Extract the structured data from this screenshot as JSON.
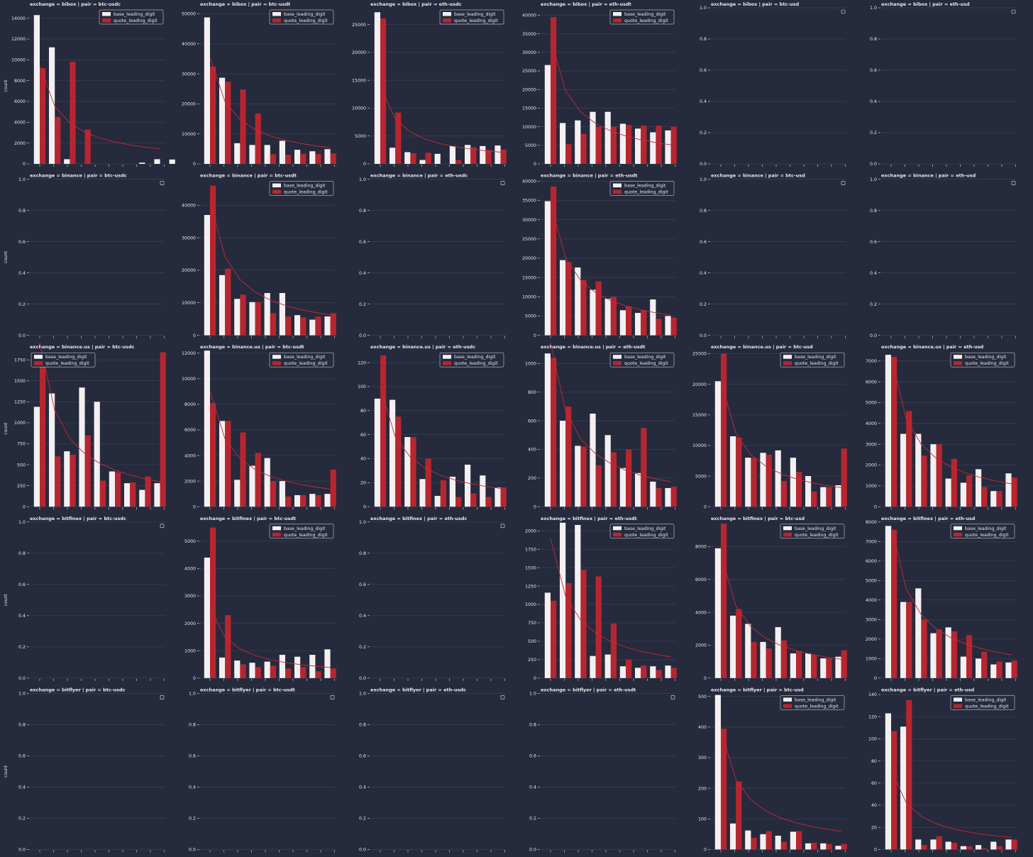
{
  "legend_labels": [
    "base_leading_digit",
    "quote_leading_digit"
  ],
  "y_label": "count",
  "colors": {
    "background": "#262a3d",
    "base": "#f4f0f2",
    "quote": "#b7262f",
    "benford_line": "#c62a34",
    "grid": "#3c4156",
    "text": "#e8e8ee"
  },
  "chart_data": [
    {
      "type": "bar",
      "title": "exchange = bibox | pair = btc-usdc",
      "ylim": [
        0,
        15000
      ],
      "yticks": [
        0,
        2000,
        4000,
        6000,
        8000,
        10000,
        12000,
        14000
      ],
      "legend": true,
      "ylabel": "count",
      "base": [
        14300,
        11200,
        450,
        0,
        0,
        0,
        0,
        120,
        450,
        420
      ],
      "quote": [
        9200,
        4500,
        9800,
        3300,
        0,
        0,
        0,
        0,
        0,
        0
      ],
      "benford_total": 31400
    },
    {
      "type": "bar",
      "title": "exchange = bibox | pair = btc-usdt",
      "ylim": [
        0,
        52000
      ],
      "yticks": [
        0,
        10000,
        20000,
        30000,
        40000,
        50000
      ],
      "legend": true,
      "ylabel": "",
      "base": [
        48800,
        28700,
        6900,
        6300,
        6300,
        7700,
        4700,
        4200,
        4900,
        0
      ],
      "quote": [
        32400,
        27400,
        24800,
        16800,
        3200,
        3000,
        3400,
        3300,
        3500,
        0
      ],
      "benford_total": 117600
    },
    {
      "type": "bar",
      "title": "exchange = bibox | pair = eth-usdc",
      "ylim": [
        0,
        28000
      ],
      "yticks": [
        0,
        5000,
        10000,
        15000,
        20000,
        25000
      ],
      "legend": true,
      "ylabel": "",
      "base": [
        27200,
        2900,
        2100,
        700,
        1800,
        3200,
        3400,
        3200,
        3300,
        0
      ],
      "quote": [
        26100,
        9200,
        1900,
        2000,
        0,
        700,
        3000,
        2500,
        2600,
        0
      ],
      "benford_total": 45800
    },
    {
      "type": "bar",
      "title": "exchange = bibox | pair = eth-usdt",
      "ylim": [
        0,
        42000
      ],
      "yticks": [
        0,
        5000,
        10000,
        15000,
        20000,
        25000,
        30000,
        35000,
        40000
      ],
      "legend": true,
      "ylabel": "",
      "base": [
        26600,
        11000,
        11700,
        14000,
        14000,
        10800,
        9500,
        8500,
        9000,
        0
      ],
      "quote": [
        39500,
        5300,
        8100,
        10000,
        10000,
        10500,
        10300,
        10300,
        10000,
        0
      ],
      "benford_total": 112000
    },
    {
      "type": "bar",
      "title": "exchange = bibox | pair = btc-usd",
      "ylim": [
        0,
        1
      ],
      "yticks": [
        0.0,
        0.2,
        0.4,
        0.6,
        0.8,
        1.0
      ],
      "legend": false,
      "ylabel": "",
      "base": [],
      "quote": [],
      "benford_total": 0
    },
    {
      "type": "bar",
      "title": "exchange = bibox | pair = eth-usd",
      "ylim": [
        0,
        1
      ],
      "yticks": [
        0.0,
        0.2,
        0.4,
        0.6,
        0.8,
        1.0
      ],
      "legend": false,
      "ylabel": "",
      "base": [],
      "quote": [],
      "benford_total": 0
    },
    {
      "type": "bar",
      "title": "exchange = binance | pair = btc-usdc",
      "ylim": [
        0,
        1
      ],
      "yticks": [
        0.0,
        0.2,
        0.4,
        0.6,
        0.8,
        1.0
      ],
      "legend": false,
      "ylabel": "count",
      "base": [],
      "quote": [],
      "benford_total": 0
    },
    {
      "type": "bar",
      "title": "exchange = binance | pair = btc-usdt",
      "ylim": [
        0,
        48000
      ],
      "yticks": [
        0,
        10000,
        20000,
        30000,
        40000
      ],
      "legend": true,
      "ylabel": "",
      "base": [
        37000,
        18500,
        11200,
        10200,
        13000,
        13000,
        6200,
        4800,
        5800,
        0
      ],
      "quote": [
        46000,
        20500,
        12500,
        10200,
        6800,
        5800,
        5500,
        5800,
        6800,
        0
      ],
      "benford_total": 137000
    },
    {
      "type": "bar",
      "title": "exchange = binance | pair = eth-usdc",
      "ylim": [
        0,
        1
      ],
      "yticks": [
        0.0,
        0.2,
        0.4,
        0.6,
        0.8,
        1.0
      ],
      "legend": false,
      "ylabel": "",
      "base": [],
      "quote": [],
      "benford_total": 0
    },
    {
      "type": "bar",
      "title": "exchange = binance | pair = eth-usdt",
      "ylim": [
        0,
        40500
      ],
      "yticks": [
        0,
        5000,
        10000,
        15000,
        20000,
        25000,
        30000,
        35000,
        40000
      ],
      "legend": true,
      "ylabel": "",
      "base": [
        34800,
        19500,
        17600,
        11800,
        9500,
        6500,
        5800,
        9300,
        5000,
        0
      ],
      "quote": [
        38600,
        19000,
        14400,
        14000,
        10000,
        7500,
        6500,
        4300,
        4600,
        0
      ],
      "benford_total": 114000
    },
    {
      "type": "bar",
      "title": "exchange = binance | pair = btc-usd",
      "ylim": [
        0,
        1
      ],
      "yticks": [
        0.0,
        0.2,
        0.4,
        0.6,
        0.8,
        1.0
      ],
      "legend": false,
      "ylabel": "",
      "base": [],
      "quote": [],
      "benford_total": 0
    },
    {
      "type": "bar",
      "title": "exchange = binance | pair = eth-usd",
      "ylim": [
        0,
        1
      ],
      "yticks": [
        0.0,
        0.2,
        0.4,
        0.6,
        0.8,
        1.0
      ],
      "legend": false,
      "ylabel": "",
      "base": [],
      "quote": [],
      "benford_total": 0
    },
    {
      "type": "bar",
      "title": "exchange = binance.us | pair = btc-usdc",
      "ylim": [
        0,
        1860
      ],
      "yticks": [
        0,
        250,
        500,
        750,
        1000,
        1250,
        1500,
        1750
      ],
      "legend": true,
      "legend_pos": "top-left",
      "ylabel": "count",
      "base": [
        1190,
        1350,
        660,
        1420,
        1250,
        420,
        280,
        200,
        280,
        0
      ],
      "quote": [
        1720,
        600,
        620,
        850,
        310,
        410,
        290,
        360,
        1840,
        0
      ],
      "benford_total": 6500
    },
    {
      "type": "bar",
      "title": "exchange = binance.us | pair = btc-usdt",
      "ylim": [
        0,
        12200
      ],
      "yticks": [
        0,
        2000,
        4000,
        6000,
        8000,
        10000,
        12000
      ],
      "legend": true,
      "ylabel": "",
      "base": [
        12200,
        6700,
        2100,
        3200,
        3800,
        2000,
        900,
        1000,
        1000,
        0
      ],
      "quote": [
        8100,
        6700,
        5800,
        4200,
        2000,
        800,
        900,
        900,
        2900,
        0
      ],
      "benford_total": 30000
    },
    {
      "type": "bar",
      "title": "exchange = binance.us | pair = eth-usdc",
      "ylim": [
        0,
        130
      ],
      "yticks": [
        0,
        20,
        40,
        60,
        80,
        100,
        120
      ],
      "legend": true,
      "ylabel": "",
      "base": [
        90,
        89,
        58,
        23,
        9,
        25,
        35,
        26,
        16,
        0
      ],
      "quote": [
        126,
        75,
        58,
        40,
        22,
        8,
        11,
        8,
        16,
        0
      ],
      "benford_total": 330
    },
    {
      "type": "bar",
      "title": "exchange = binance.us | pair = eth-usdt",
      "ylim": [
        0,
        1090
      ],
      "yticks": [
        0,
        200,
        400,
        600,
        800,
        1000
      ],
      "legend": true,
      "ylabel": "",
      "base": [
        1070,
        600,
        425,
        650,
        500,
        270,
        235,
        175,
        130,
        0
      ],
      "quote": [
        1040,
        700,
        420,
        290,
        380,
        400,
        550,
        130,
        140,
        0
      ],
      "benford_total": 3800
    },
    {
      "type": "bar",
      "title": "exchange = binance.us | pair = btc-usd",
      "ylim": [
        0,
        25500
      ],
      "yticks": [
        0,
        5000,
        10000,
        15000,
        20000,
        25000
      ],
      "legend": true,
      "ylabel": "",
      "base": [
        20500,
        11500,
        8000,
        8800,
        9200,
        8000,
        5000,
        3200,
        3500,
        0
      ],
      "quote": [
        25000,
        11300,
        8000,
        8500,
        4200,
        5700,
        2500,
        3200,
        9500,
        0
      ],
      "benford_total": 68000
    },
    {
      "type": "bar",
      "title": "exchange = binance.us | pair = eth-usd",
      "ylim": [
        0,
        7500
      ],
      "yticks": [
        0,
        1000,
        2000,
        3000,
        4000,
        5000,
        6000,
        7000
      ],
      "legend": true,
      "ylabel": "",
      "base": [
        7300,
        3500,
        3500,
        3000,
        1350,
        1150,
        1800,
        750,
        1600,
        0
      ],
      "quote": [
        7200,
        4600,
        2450,
        3000,
        2300,
        1500,
        950,
        750,
        1400,
        0
      ],
      "benford_total": 24000
    },
    {
      "type": "bar",
      "title": "exchange = bitfinex | pair = btc-usdc",
      "ylim": [
        0,
        1
      ],
      "yticks": [
        0.0,
        0.2,
        0.4,
        0.6,
        0.8,
        1.0
      ],
      "legend": false,
      "ylabel": "count",
      "base": [],
      "quote": [],
      "benford_total": 0
    },
    {
      "type": "bar",
      "title": "exchange = bitfinex | pair = btc-usdt",
      "ylim": [
        0,
        5700
      ],
      "yticks": [
        0,
        1000,
        2000,
        3000,
        4000,
        5000
      ],
      "legend": true,
      "ylabel": "",
      "base": [
        4400,
        750,
        640,
        560,
        600,
        850,
        780,
        850,
        1050,
        0
      ],
      "quote": [
        5500,
        2300,
        500,
        400,
        450,
        350,
        400,
        250,
        350,
        0
      ],
      "benford_total": 8500
    },
    {
      "type": "bar",
      "title": "exchange = bitfinex | pair = eth-usdc",
      "ylim": [
        0,
        1
      ],
      "yticks": [
        0.0,
        0.2,
        0.4,
        0.6,
        0.8,
        1.0
      ],
      "legend": false,
      "ylabel": "",
      "base": [],
      "quote": [],
      "benford_total": 0
    },
    {
      "type": "bar",
      "title": "exchange = bitfinex | pair = eth-usdt",
      "ylim": [
        0,
        2120
      ],
      "yticks": [
        0,
        250,
        500,
        750,
        1000,
        1250,
        1500,
        1750,
        2000
      ],
      "legend": true,
      "ylabel": "",
      "base": [
        1160,
        2110,
        2080,
        300,
        320,
        160,
        140,
        160,
        170,
        0
      ],
      "quote": [
        1050,
        1290,
        1470,
        1380,
        740,
        250,
        170,
        110,
        140,
        0
      ],
      "benford_total": 6300
    },
    {
      "type": "bar",
      "title": "exchange = bitfinex | pair = btc-usd",
      "ylim": [
        0,
        9500
      ],
      "yticks": [
        0,
        2000,
        4000,
        6000,
        8000
      ],
      "legend": true,
      "ylabel": "",
      "base": [
        7900,
        3800,
        3300,
        2200,
        3100,
        1500,
        1500,
        1200,
        1300,
        0
      ],
      "quote": [
        9400,
        4200,
        2200,
        1800,
        2300,
        1650,
        1400,
        1200,
        1700,
        0
      ],
      "benford_total": 25000
    },
    {
      "type": "bar",
      "title": "exchange = bitfinex | pair = eth-usd",
      "ylim": [
        0,
        8000
      ],
      "yticks": [
        0,
        1000,
        2000,
        3000,
        4000,
        5000,
        6000,
        7000,
        8000
      ],
      "legend": true,
      "ylabel": "",
      "base": [
        7800,
        3900,
        4600,
        2300,
        2600,
        1100,
        1000,
        700,
        800,
        0
      ],
      "quote": [
        7600,
        3900,
        3000,
        2500,
        2400,
        2200,
        1350,
        850,
        900,
        0
      ],
      "benford_total": 26000
    },
    {
      "type": "bar",
      "title": "exchange = bitflyer | pair = btc-usdc",
      "ylim": [
        0,
        1
      ],
      "yticks": [
        0.0,
        0.2,
        0.4,
        0.6,
        0.8,
        1.0
      ],
      "legend": false,
      "ylabel": "count",
      "base": [],
      "quote": [],
      "benford_total": 0
    },
    {
      "type": "bar",
      "title": "exchange = bitflyer | pair = btc-usdt",
      "ylim": [
        0,
        1
      ],
      "yticks": [
        0.0,
        0.2,
        0.4,
        0.6,
        0.8,
        1.0
      ],
      "legend": false,
      "ylabel": "",
      "base": [],
      "quote": [],
      "benford_total": 0
    },
    {
      "type": "bar",
      "title": "exchange = bitflyer | pair = eth-usdc",
      "ylim": [
        0,
        1
      ],
      "yticks": [
        0.0,
        0.2,
        0.4,
        0.6,
        0.8,
        1.0
      ],
      "legend": false,
      "ylabel": "",
      "base": [],
      "quote": [],
      "benford_total": 0
    },
    {
      "type": "bar",
      "title": "exchange = bitflyer | pair = eth-usdt",
      "ylim": [
        0,
        1
      ],
      "yticks": [
        0.0,
        0.2,
        0.4,
        0.6,
        0.8,
        1.0
      ],
      "legend": false,
      "ylabel": "",
      "base": [],
      "quote": [],
      "benford_total": 0
    },
    {
      "type": "bar",
      "title": "exchange = bitflyer | pair = btc-usd",
      "ylim": [
        0,
        510
      ],
      "yticks": [
        0,
        100,
        200,
        300,
        400,
        500
      ],
      "legend": true,
      "ylabel": "",
      "base": [
        505,
        85,
        62,
        50,
        45,
        58,
        20,
        20,
        12,
        0
      ],
      "quote": [
        395,
        222,
        38,
        60,
        25,
        60,
        22,
        18,
        18,
        0
      ],
      "benford_total": 1300
    },
    {
      "type": "bar",
      "title": "exchange = bitflyer | pair = eth-usd",
      "ylim": [
        0,
        141
      ],
      "yticks": [
        0,
        20,
        40,
        60,
        80,
        100,
        120,
        140
      ],
      "legend": true,
      "ylabel": "",
      "base": [
        123,
        111,
        9,
        9,
        7,
        3,
        4,
        7,
        9,
        0
      ],
      "quote": [
        107,
        135,
        4,
        12,
        6,
        3,
        1,
        3,
        9,
        0
      ],
      "benford_total": 240
    }
  ]
}
